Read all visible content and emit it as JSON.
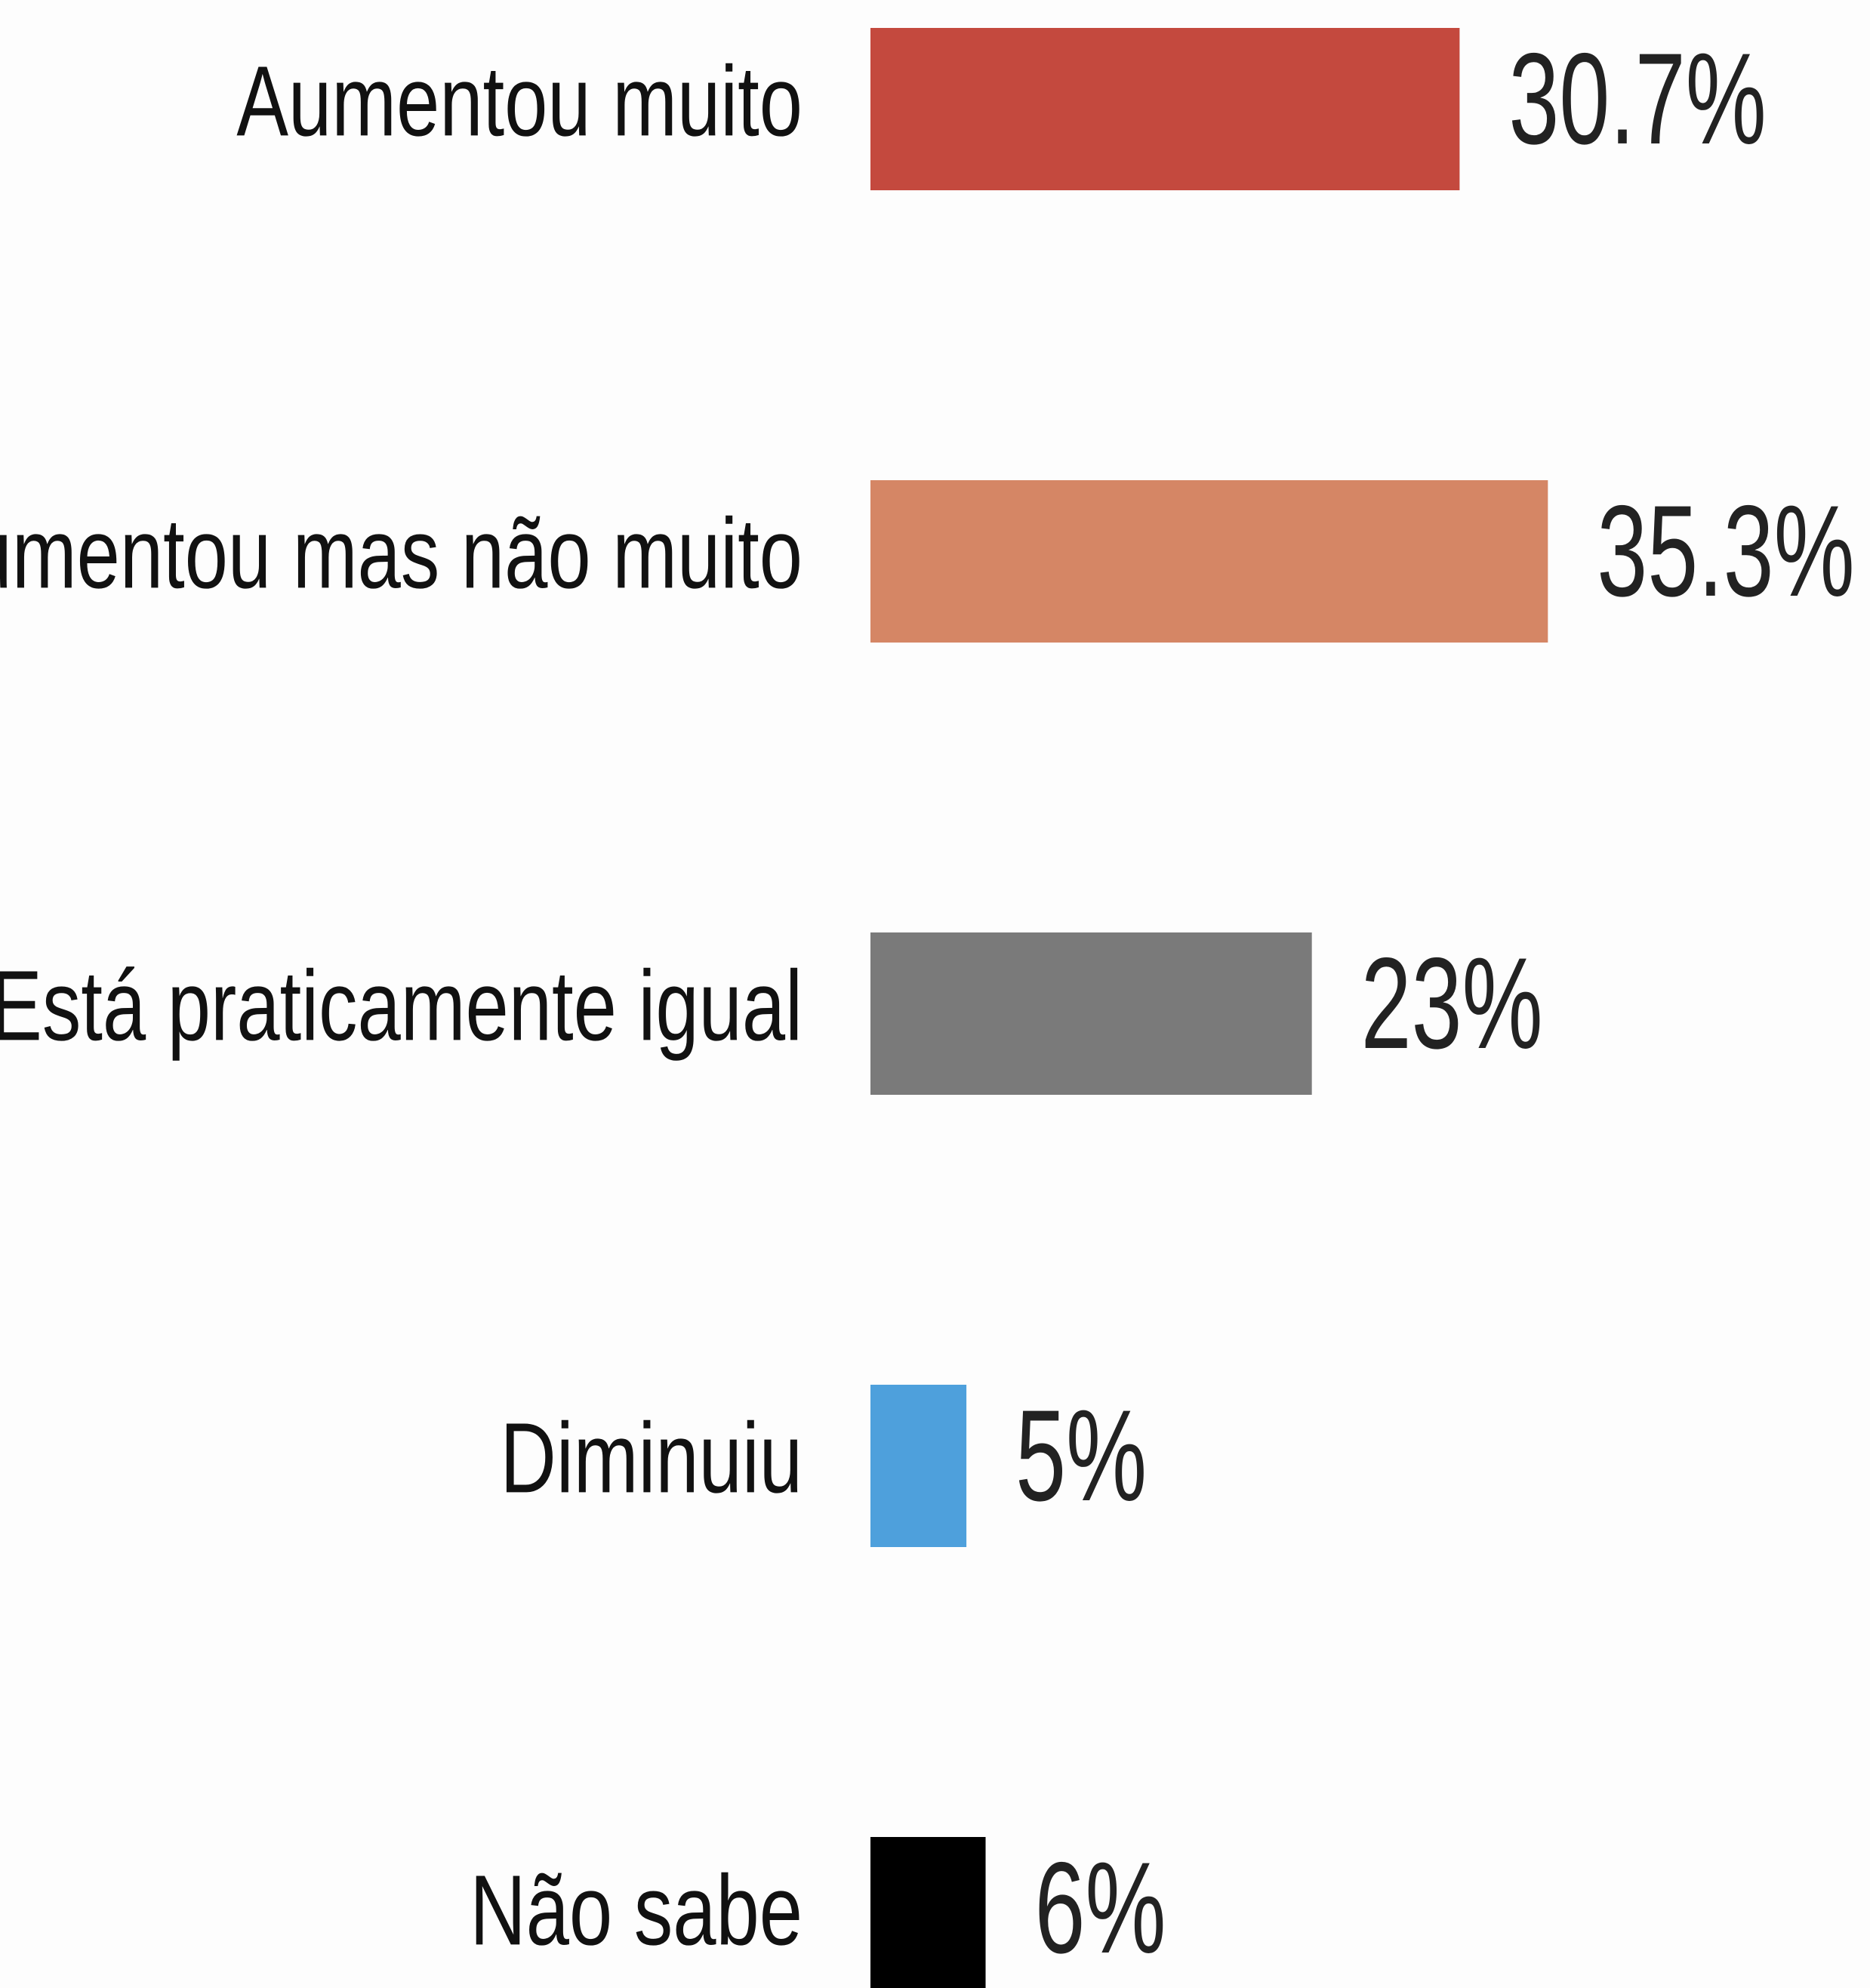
{
  "chart_data": {
    "type": "hbar",
    "categories": [
      "Aumentou muito",
      "Aumentou mas não muito",
      "Está praticamente igual",
      "Diminuiu",
      "Não sabe"
    ],
    "values": [
      30.7,
      35.3,
      23,
      5,
      6
    ],
    "value_labels": [
      "30.7%",
      "35.3%",
      "23%",
      "5%",
      "6%"
    ],
    "colors": [
      "#c4493e",
      "#d58665",
      "#7a7a7a",
      "#4ea0dc",
      "#000000"
    ]
  }
}
